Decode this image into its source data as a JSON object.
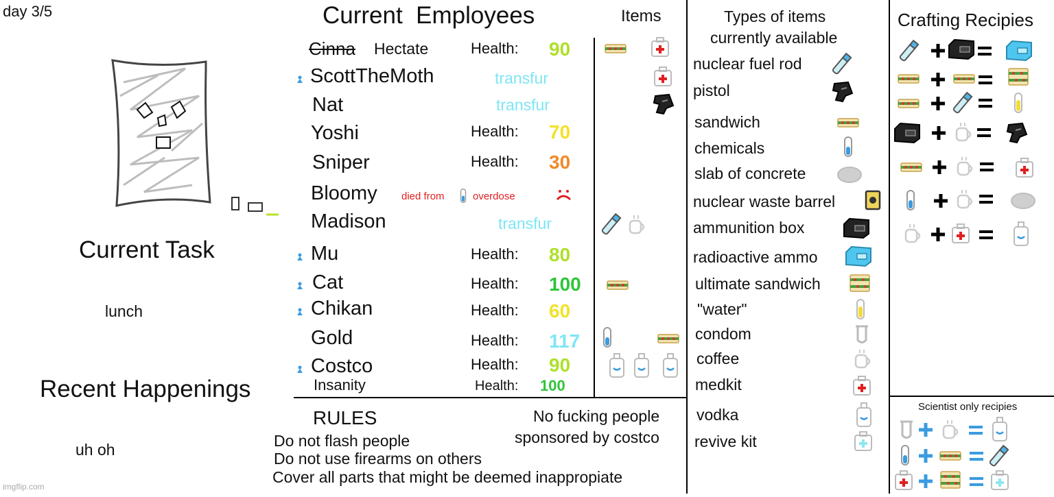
{
  "day": "day 3/5",
  "watermark": "imgflip.com",
  "task": {
    "title": "Current Task",
    "value": "lunch"
  },
  "happenings": {
    "title": "Recent Happenings",
    "value": "uh oh"
  },
  "employees": {
    "title": "Current  Employees",
    "items_title": "Items",
    "rows": [
      {
        "name": "Hectate",
        "old_name": "Cinna",
        "scientist": false,
        "status_label": "Health:",
        "status_value": "90",
        "status_color": "#aee02a"
      },
      {
        "name": "ScottTheMoth",
        "scientist": true,
        "status_label": "",
        "status_value": "transfur",
        "status_color": "#7ee6f5"
      },
      {
        "name": "Nat",
        "scientist": false,
        "status_label": "",
        "status_value": "transfur",
        "status_color": "#7ee6f5"
      },
      {
        "name": "Yoshi",
        "scientist": false,
        "status_label": "Health:",
        "status_value": "70",
        "status_color": "#f2e22a"
      },
      {
        "name": "Sniper",
        "scientist": false,
        "status_label": "Health:",
        "status_value": "30",
        "status_color": "#f08a2a"
      },
      {
        "name": "Bloomy",
        "scientist": false,
        "status_label": "",
        "status_value": "",
        "death_prefix": "died from",
        "death_suffix": "overdose",
        "status_color": "#e02020"
      },
      {
        "name": "Madison",
        "scientist": false,
        "status_label": "",
        "status_value": "transfur",
        "status_color": "#7ee6f5"
      },
      {
        "name": "Mu",
        "scientist": true,
        "status_label": "Health:",
        "status_value": "80",
        "status_color": "#aee02a"
      },
      {
        "name": "Cat",
        "scientist": true,
        "status_label": "Health:",
        "status_value": "100",
        "status_color": "#2ec43a"
      },
      {
        "name": "Chikan",
        "scientist": true,
        "status_label": "Health:",
        "status_value": "60",
        "status_color": "#f2e22a"
      },
      {
        "name": "Gold",
        "scientist": false,
        "status_label": "Health:",
        "status_value": "117",
        "status_color": "#7ee6f5"
      },
      {
        "name": "Costco",
        "scientist": true,
        "status_label": "Health:",
        "status_value": "90",
        "status_color": "#aee02a"
      }
    ],
    "insanity": {
      "label": "Insanity",
      "health_label": "Health:",
      "value": "100",
      "color": "#2ec43a"
    }
  },
  "rules": {
    "title": "RULES",
    "lines": [
      "Do not flash people",
      "Do not use firearms on others",
      "Cover all parts that might be deemed inappropiate"
    ],
    "side_lines": [
      "No fucking people",
      "sponsored by costco"
    ]
  },
  "item_types": {
    "title_line1": "Types of items",
    "title_line2": "currently available",
    "items": [
      {
        "label": "nuclear fuel rod",
        "icon": "fuel-rod-icon"
      },
      {
        "label": "pistol",
        "icon": "pistol-icon"
      },
      {
        "label": "sandwich",
        "icon": "sandwich-icon"
      },
      {
        "label": "chemicals",
        "icon": "chemicals-icon"
      },
      {
        "label": "slab of concrete",
        "icon": "concrete-icon"
      },
      {
        "label": "nuclear waste barrel",
        "icon": "waste-barrel-icon"
      },
      {
        "label": "ammunition box",
        "icon": "ammo-box-icon"
      },
      {
        "label": "radioactive ammo",
        "icon": "radioactive-ammo-icon"
      },
      {
        "label": "ultimate sandwich",
        "icon": "ultimate-sandwich-icon"
      },
      {
        "label": "\"water\"",
        "icon": "water-icon"
      },
      {
        "label": "condom",
        "icon": "condom-icon"
      },
      {
        "label": "coffee",
        "icon": "coffee-icon"
      },
      {
        "label": "medkit",
        "icon": "medkit-icon"
      },
      {
        "label": "vodka",
        "icon": "vodka-icon"
      },
      {
        "label": "revive kit",
        "icon": "revive-kit-icon"
      }
    ]
  },
  "recipes": {
    "title": "Crafting Recipies",
    "scientist_title": "Scientist only recipies"
  }
}
